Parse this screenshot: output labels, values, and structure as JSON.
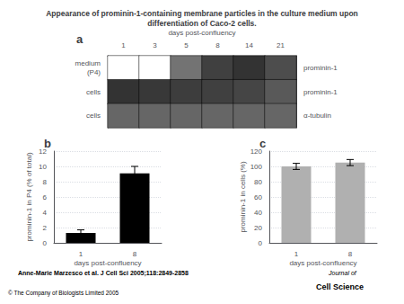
{
  "title": "Appearance of prominin-1-containing membrane particles in the culture medium upon\ndifferentiation of Caco-2 cells.",
  "annotations": [
    "Anne-Marie Marzesco et al. J Cell Sci 2005;118:2849-2858",
    "© The Company of Biologists Limited 2005",
    "Journal of",
    "Cell Science"
  ],
  "chart_data": [
    {
      "type": "heatmap",
      "title": "a",
      "categories": [
        "1",
        "3",
        "5",
        "8",
        "14",
        "21"
      ],
      "xlabel": "days post-confluency",
      "row_labels": [
        "medium\n(P4)",
        "cells",
        "cells"
      ],
      "row_labels_right": [
        "prominin-1",
        "prominin-1",
        "α-tubulin"
      ],
      "cells": [
        [
          0.0,
          0.0,
          0.55,
          0.75,
          0.8,
          0.7
        ],
        [
          0.8,
          0.78,
          0.76,
          0.75,
          0.73,
          0.65
        ],
        [
          0.6,
          0.6,
          0.6,
          0.6,
          0.6,
          0.6
        ]
      ],
      "color_range": [
        0,
        1
      ]
    },
    {
      "type": "bar",
      "title": "b",
      "categories": [
        "1",
        "8"
      ],
      "values": [
        1.3,
        9.1
      ],
      "errors": [
        0.4,
        0.9
      ],
      "color": "#000000",
      "ylabel": "prominin-1 in P4 (% of total)",
      "xlabel": "days post-confluency",
      "ylim": [
        0,
        12
      ],
      "yticks": [
        0,
        2,
        4,
        6,
        8,
        10,
        12
      ],
      "grid": true
    },
    {
      "type": "bar",
      "title": "c",
      "categories": [
        "1",
        "8"
      ],
      "values": [
        100,
        105
      ],
      "errors": [
        4,
        4
      ],
      "color": "#b0b0b0",
      "ylabel": "prominin-1 in cells (%)",
      "xlabel": "days post-confluency",
      "ylim": [
        0,
        120
      ],
      "yticks": [
        0,
        20,
        40,
        60,
        80,
        100,
        120
      ],
      "grid": true
    }
  ]
}
